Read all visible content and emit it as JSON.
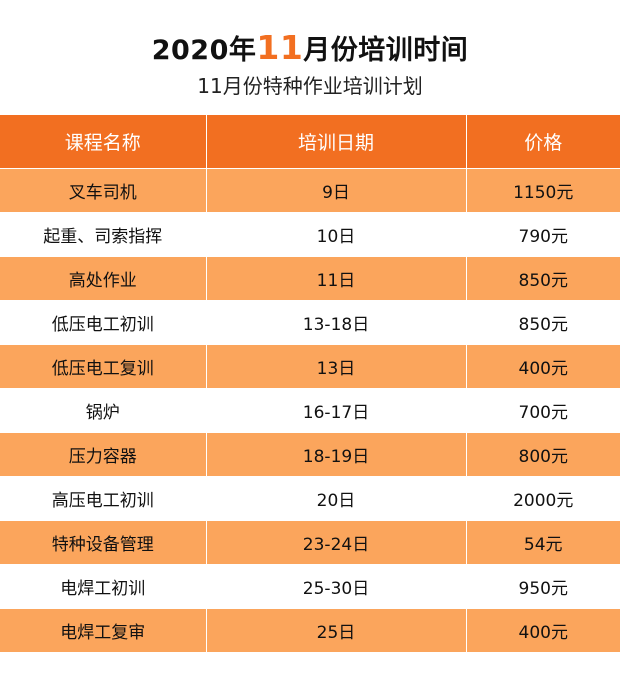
{
  "title": {
    "prefix": "2020年",
    "highlight": "11",
    "suffix": "月份培训时间"
  },
  "subtitle": "11月份特种作业培训计划",
  "table": {
    "headers": [
      "课程名称",
      "培训日期",
      "价格"
    ],
    "rows": [
      [
        "叉车司机",
        "9日",
        "1150元"
      ],
      [
        "起重、司索指挥",
        "10日",
        "790元"
      ],
      [
        "高处作业",
        "11日",
        "850元"
      ],
      [
        "低压电工初训",
        "13-18日",
        "850元"
      ],
      [
        "低压电工复训",
        "13日",
        "400元"
      ],
      [
        "锅炉",
        "16-17日",
        "700元"
      ],
      [
        "压力容器",
        "18-19日",
        "800元"
      ],
      [
        "高压电工初训",
        "20日",
        "2000元"
      ],
      [
        "特种设备管理",
        "23-24日",
        "54元"
      ],
      [
        "电焊工初训",
        "25-30日",
        "950元"
      ],
      [
        "电焊工复审",
        "25日",
        "400元"
      ]
    ]
  },
  "colors": {
    "accent": "#f26f21",
    "row_alt": "#fba55c",
    "header_text": "#ffffff"
  }
}
